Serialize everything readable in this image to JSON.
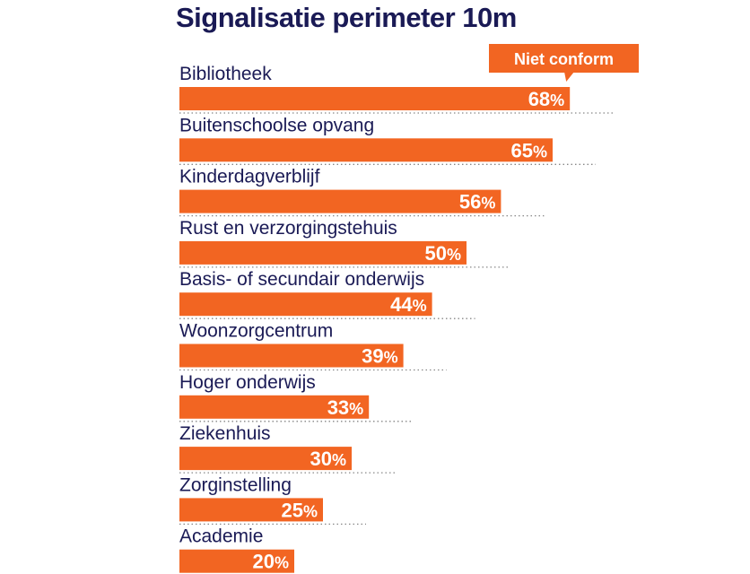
{
  "chart_data": {
    "type": "bar",
    "orientation": "horizontal",
    "title": "Signalisatie perimeter 10m",
    "categories": [
      "Bibliotheek",
      "Buitenschoolse opvang",
      "Kinderdagverblijf",
      "Rust en verzorgingstehuis",
      "Basis- of secundair onderwijs",
      "Woonzorgcentrum",
      "Hoger onderwijs",
      "Ziekenhuis",
      "Zorginstelling",
      "Academie"
    ],
    "series": [
      {
        "name": "Niet conform",
        "values": [
          68,
          65,
          56,
          50,
          44,
          39,
          33,
          30,
          25,
          20
        ]
      }
    ],
    "value_suffix": "%",
    "xlim": [
      0,
      100
    ],
    "grid": false,
    "legend": "top-right",
    "colors": {
      "bar": "#f26522",
      "title": "#1a1a55",
      "label": "#1a1a55",
      "value_text": "#ffffff",
      "dots": "#888888"
    }
  }
}
